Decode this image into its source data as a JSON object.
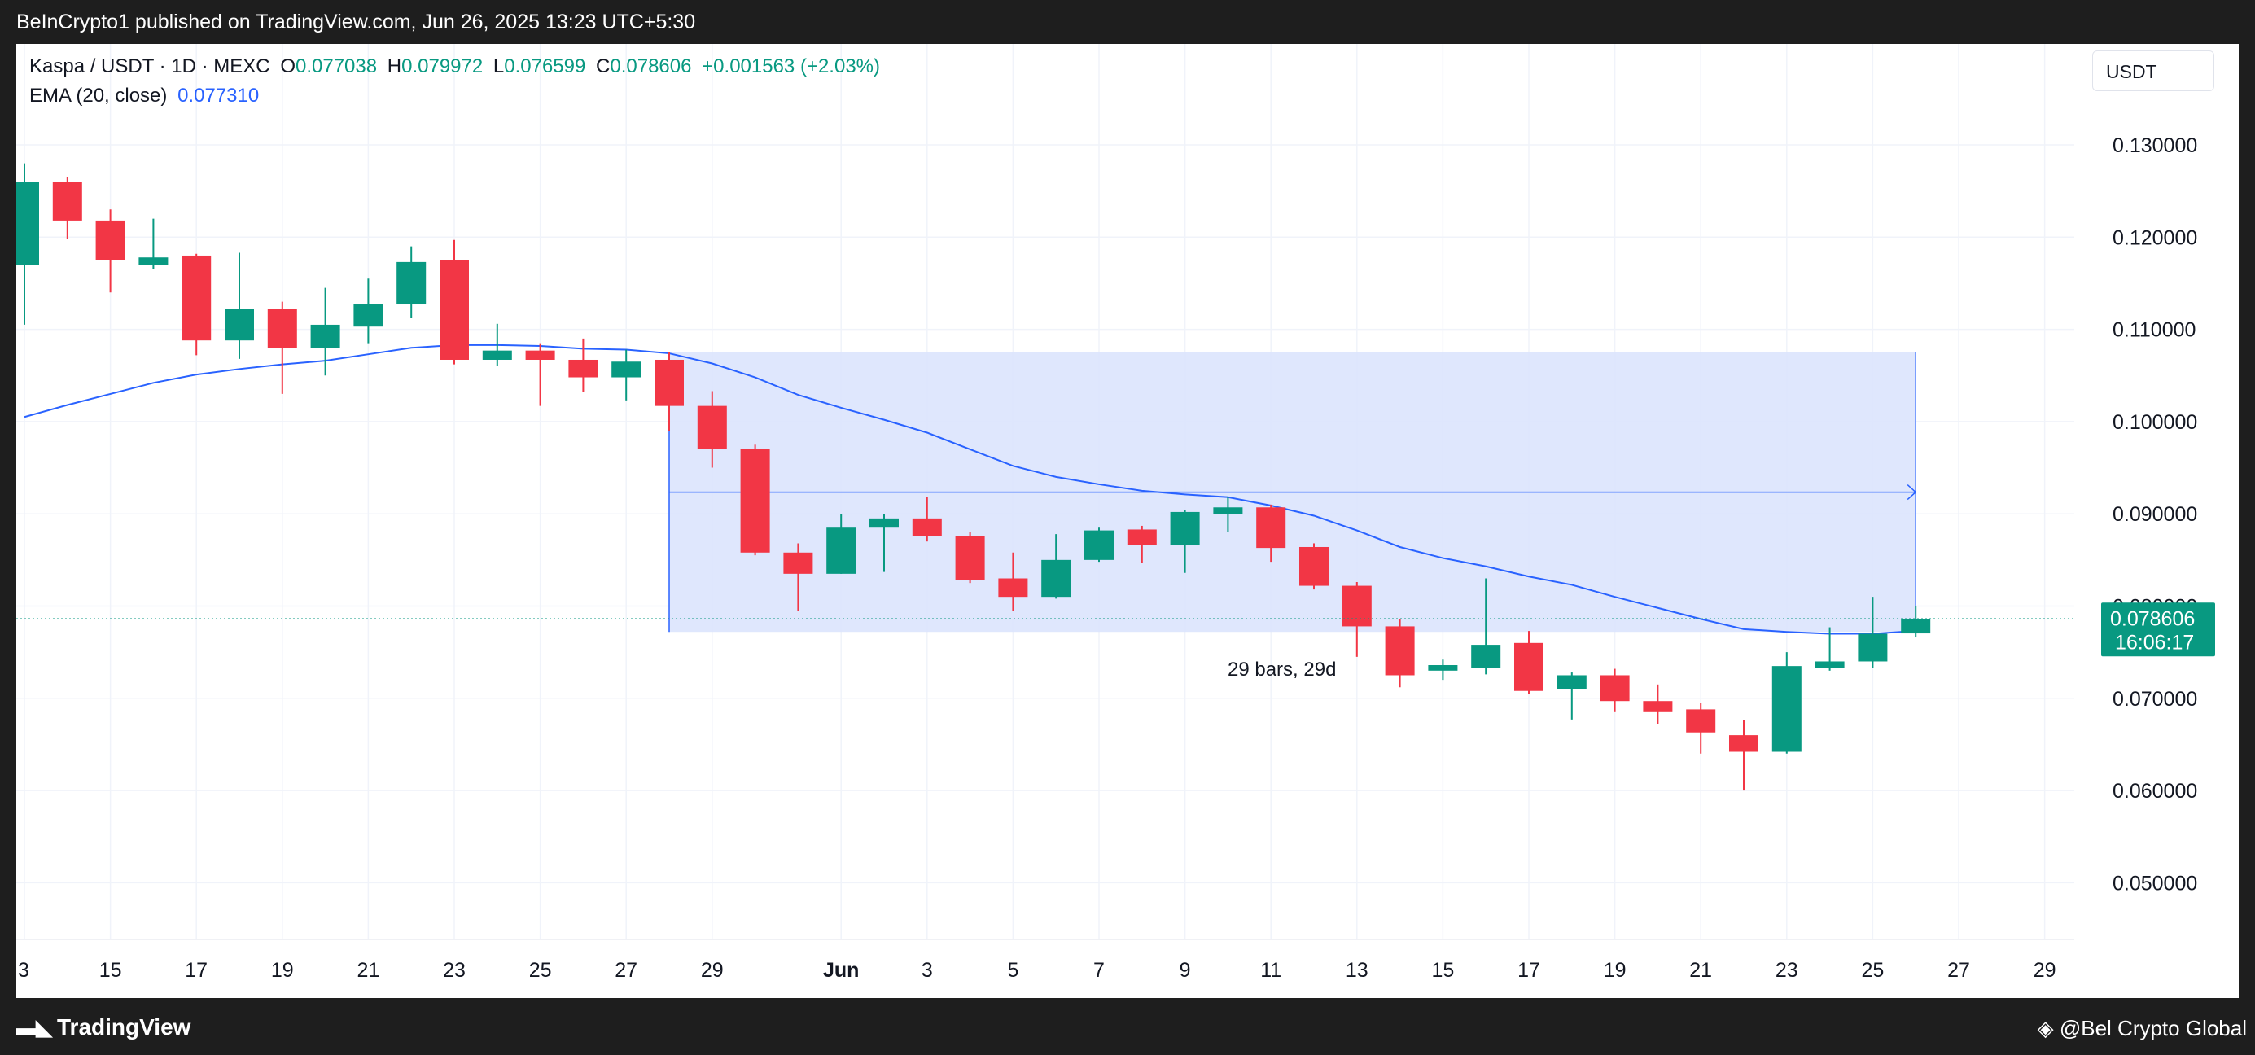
{
  "header": {
    "published": "BeInCrypto1 published on TradingView.com, Jun 26, 2025 13:23 UTC+5:30"
  },
  "legend": {
    "symbol": "Kaspa / USDT · 1D · MEXC",
    "o_label": "O",
    "o_value": "0.077038",
    "h_label": "H",
    "h_value": "0.079972",
    "l_label": "L",
    "l_value": "0.076599",
    "c_label": "C",
    "c_value": "0.078606",
    "change": "+0.001563 (+2.03%)",
    "ema_label": "EMA (20, close)",
    "ema_value": "0.077310"
  },
  "currency_button": "USDT",
  "price_tag": {
    "price": "0.078606",
    "countdown": "16:06:17"
  },
  "footer": {
    "brand": "TradingView",
    "watermark": "@Bel  Crypto Global"
  },
  "colors": {
    "up": "#089981",
    "down": "#f23645",
    "ema": "#2962ff",
    "range_fill": "#dbe4fd",
    "range_line": "#2962ff"
  },
  "chart_data": {
    "type": "candlestick",
    "x_tick_labels": [
      "3",
      "15",
      "17",
      "19",
      "21",
      "23",
      "25",
      "27",
      "29",
      "Jun",
      "3",
      "5",
      "7",
      "9",
      "11",
      "13",
      "15",
      "17",
      "19",
      "21",
      "23",
      "25",
      "27",
      "29"
    ],
    "y_tick_labels": [
      "0.130000",
      "0.120000",
      "0.110000",
      "0.100000",
      "0.090000",
      "0.080000",
      "0.070000",
      "0.060000",
      "0.050000"
    ],
    "y_ticks": [
      0.13,
      0.12,
      0.11,
      0.1,
      0.09,
      0.08,
      0.07,
      0.06,
      0.05
    ],
    "ylim": [
      0.0425,
      0.1435
    ],
    "candles": [
      {
        "date": "May 13",
        "o": 0.117,
        "h": 0.128,
        "l": 0.1105,
        "c": 0.126
      },
      {
        "date": "May 14",
        "o": 0.126,
        "h": 0.1265,
        "l": 0.1198,
        "c": 0.1218
      },
      {
        "date": "May 15",
        "o": 0.1218,
        "h": 0.123,
        "l": 0.114,
        "c": 0.1175
      },
      {
        "date": "May 16",
        "o": 0.117,
        "h": 0.122,
        "l": 0.1165,
        "c": 0.1178
      },
      {
        "date": "May 17",
        "o": 0.118,
        "h": 0.1182,
        "l": 0.1072,
        "c": 0.1088
      },
      {
        "date": "May 18",
        "o": 0.1088,
        "h": 0.1183,
        "l": 0.1068,
        "c": 0.1122
      },
      {
        "date": "May 19",
        "o": 0.1122,
        "h": 0.113,
        "l": 0.103,
        "c": 0.108
      },
      {
        "date": "May 20",
        "o": 0.108,
        "h": 0.1145,
        "l": 0.105,
        "c": 0.1105
      },
      {
        "date": "May 21",
        "o": 0.1103,
        "h": 0.1155,
        "l": 0.1085,
        "c": 0.1127
      },
      {
        "date": "May 22",
        "o": 0.1127,
        "h": 0.119,
        "l": 0.1112,
        "c": 0.1173
      },
      {
        "date": "May 23",
        "o": 0.1175,
        "h": 0.1197,
        "l": 0.1062,
        "c": 0.1067
      },
      {
        "date": "May 24",
        "o": 0.1067,
        "h": 0.1106,
        "l": 0.106,
        "c": 0.1077
      },
      {
        "date": "May 25",
        "o": 0.1077,
        "h": 0.1085,
        "l": 0.1017,
        "c": 0.1067
      },
      {
        "date": "May 26",
        "o": 0.1067,
        "h": 0.109,
        "l": 0.1032,
        "c": 0.1048
      },
      {
        "date": "May 27",
        "o": 0.1048,
        "h": 0.1078,
        "l": 0.1023,
        "c": 0.1065
      },
      {
        "date": "May 28",
        "o": 0.1067,
        "h": 0.1075,
        "l": 0.099,
        "c": 0.1017
      },
      {
        "date": "May 29",
        "o": 0.1017,
        "h": 0.1033,
        "l": 0.095,
        "c": 0.097
      },
      {
        "date": "May 30",
        "o": 0.097,
        "h": 0.0975,
        "l": 0.0855,
        "c": 0.0858
      },
      {
        "date": "May 31",
        "o": 0.0858,
        "h": 0.0868,
        "l": 0.0795,
        "c": 0.0835
      },
      {
        "date": "Jun 1",
        "o": 0.0835,
        "h": 0.09,
        "l": 0.0835,
        "c": 0.0885
      },
      {
        "date": "Jun 2",
        "o": 0.0885,
        "h": 0.09,
        "l": 0.0837,
        "c": 0.0895
      },
      {
        "date": "Jun 3",
        "o": 0.0895,
        "h": 0.0918,
        "l": 0.087,
        "c": 0.0876
      },
      {
        "date": "Jun 4",
        "o": 0.0876,
        "h": 0.088,
        "l": 0.0825,
        "c": 0.0828
      },
      {
        "date": "Jun 5",
        "o": 0.083,
        "h": 0.0858,
        "l": 0.0795,
        "c": 0.081
      },
      {
        "date": "Jun 6",
        "o": 0.081,
        "h": 0.0878,
        "l": 0.0808,
        "c": 0.085
      },
      {
        "date": "Jun 7",
        "o": 0.085,
        "h": 0.0885,
        "l": 0.0848,
        "c": 0.0882
      },
      {
        "date": "Jun 8",
        "o": 0.0883,
        "h": 0.0887,
        "l": 0.0847,
        "c": 0.0866
      },
      {
        "date": "Jun 9",
        "o": 0.0866,
        "h": 0.0904,
        "l": 0.0836,
        "c": 0.0902
      },
      {
        "date": "Jun 10",
        "o": 0.09,
        "h": 0.0918,
        "l": 0.088,
        "c": 0.0907
      },
      {
        "date": "Jun 11",
        "o": 0.0907,
        "h": 0.091,
        "l": 0.0848,
        "c": 0.0863
      },
      {
        "date": "Jun 12",
        "o": 0.0864,
        "h": 0.0868,
        "l": 0.0818,
        "c": 0.0822
      },
      {
        "date": "Jun 13",
        "o": 0.0822,
        "h": 0.0826,
        "l": 0.0745,
        "c": 0.0778
      },
      {
        "date": "Jun 14",
        "o": 0.0778,
        "h": 0.0786,
        "l": 0.0712,
        "c": 0.0725
      },
      {
        "date": "Jun 15",
        "o": 0.073,
        "h": 0.0742,
        "l": 0.072,
        "c": 0.0736
      },
      {
        "date": "Jun 16",
        "o": 0.0733,
        "h": 0.083,
        "l": 0.0726,
        "c": 0.0758
      },
      {
        "date": "Jun 17",
        "o": 0.076,
        "h": 0.0773,
        "l": 0.0705,
        "c": 0.0708
      },
      {
        "date": "Jun 18",
        "o": 0.071,
        "h": 0.0728,
        "l": 0.0677,
        "c": 0.0725
      },
      {
        "date": "Jun 19",
        "o": 0.0725,
        "h": 0.0732,
        "l": 0.0685,
        "c": 0.0697
      },
      {
        "date": "Jun 20",
        "o": 0.0697,
        "h": 0.0715,
        "l": 0.0672,
        "c": 0.0685
      },
      {
        "date": "Jun 21",
        "o": 0.0688,
        "h": 0.0695,
        "l": 0.064,
        "c": 0.0663
      },
      {
        "date": "Jun 22",
        "o": 0.066,
        "h": 0.0676,
        "l": 0.06,
        "c": 0.0642
      },
      {
        "date": "Jun 23",
        "o": 0.0642,
        "h": 0.075,
        "l": 0.064,
        "c": 0.0735
      },
      {
        "date": "Jun 24",
        "o": 0.0733,
        "h": 0.0777,
        "l": 0.073,
        "c": 0.074
      },
      {
        "date": "Jun 25",
        "o": 0.074,
        "h": 0.081,
        "l": 0.0733,
        "c": 0.077
      },
      {
        "date": "Jun 26",
        "o": 0.077038,
        "h": 0.079972,
        "l": 0.076599,
        "c": 0.078606
      }
    ],
    "ema": [
      0.1005,
      0.1018,
      0.103,
      0.1042,
      0.1051,
      0.1057,
      0.1062,
      0.1066,
      0.1073,
      0.108,
      0.1083,
      0.1083,
      0.1082,
      0.1079,
      0.1078,
      0.1074,
      0.1063,
      0.1048,
      0.1029,
      0.1015,
      0.1002,
      0.0988,
      0.097,
      0.0952,
      0.094,
      0.0932,
      0.0925,
      0.0921,
      0.0918,
      0.0909,
      0.0898,
      0.0882,
      0.0864,
      0.0852,
      0.0843,
      0.0832,
      0.0823,
      0.081,
      0.0798,
      0.0786,
      0.0775,
      0.0772,
      0.077,
      0.077,
      0.07731
    ],
    "range_box": {
      "start_date": "May 28",
      "end_date": "Jun 26",
      "top": 0.1075,
      "bottom": 0.0772,
      "label": "29 bars, 29d"
    },
    "last_price": 0.078606
  }
}
